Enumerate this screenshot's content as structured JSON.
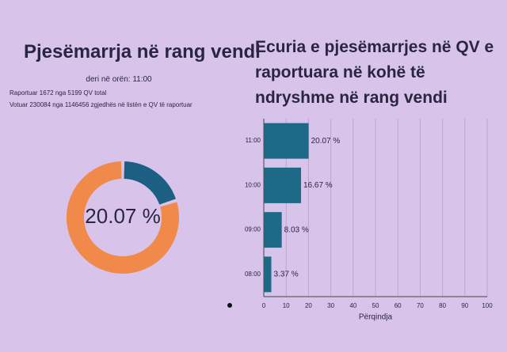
{
  "chart_data": [
    {
      "type": "donut",
      "title": "Pjesëmarrja në rang vendi",
      "subtitle": "deri në orën: 11:00",
      "annotations": [
        "Raportuar 1672 nga 5199 QV total",
        "Votuar 230084 nga 1146456 zgjedhës në listën e QV të raportuar"
      ],
      "values": [
        20.07,
        79.93
      ],
      "value_labels": [
        "20.07 %"
      ],
      "colors": [
        "#1d5f82",
        "#f0894a"
      ]
    },
    {
      "type": "barh",
      "title": "Ecuria e pjesëmarrjes në QV e raportuara në kohë të ndryshme në rang vendi",
      "categories": [
        "11:00",
        "10:00",
        "09:00",
        "08:00"
      ],
      "values": [
        20.07,
        16.67,
        8.03,
        3.37
      ],
      "value_labels": [
        "20.07 %",
        "16.67 %",
        "8.03 %",
        "3.37 %"
      ],
      "xlabel": "Përqindja",
      "xlim": [
        0,
        100
      ],
      "xticks": [
        0,
        10,
        20,
        30,
        40,
        50,
        60,
        70,
        80,
        90,
        100
      ],
      "grid": true,
      "color": "#1d6a88"
    }
  ]
}
